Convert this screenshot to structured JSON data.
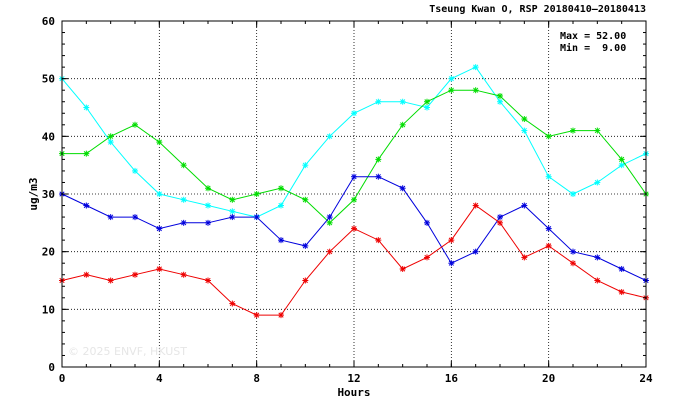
{
  "chart_data": {
    "type": "line",
    "title": "Tseung Kwan O, RSP 20180410–20180413",
    "xlabel": "Hours",
    "ylabel": "ug/m3",
    "xlim": [
      0,
      24
    ],
    "ylim": [
      0,
      60
    ],
    "xticks": [
      "0",
      "4",
      "8",
      "12",
      "16",
      "20",
      "24"
    ],
    "yticks": [
      "0",
      "10",
      "20",
      "30",
      "40",
      "50",
      "60"
    ],
    "grid": true,
    "grid_style": "dotted",
    "stats": {
      "max": "Max = 52.00",
      "min": "Min =  9.00"
    },
    "watermark": "© 2025  ENVF, HKUST",
    "x": [
      0,
      1,
      2,
      3,
      4,
      5,
      6,
      7,
      8,
      9,
      10,
      11,
      12,
      13,
      14,
      15,
      16,
      17,
      18,
      19,
      20,
      21,
      22,
      23,
      24
    ],
    "series": [
      {
        "color": "#00ffff",
        "values": [
          50,
          45,
          39,
          34,
          30,
          29,
          28,
          27,
          26,
          28,
          35,
          40,
          44,
          46,
          46,
          45,
          50,
          52,
          46,
          41,
          33,
          30,
          32,
          35,
          37
        ]
      },
      {
        "color": "#00dd00",
        "values": [
          37,
          37,
          40,
          42,
          39,
          35,
          31,
          29,
          30,
          31,
          29,
          25,
          29,
          36,
          42,
          46,
          48,
          48,
          47,
          43,
          40,
          41,
          41,
          36,
          30
        ]
      },
      {
        "color": "#0000dd",
        "values": [
          30,
          28,
          26,
          26,
          24,
          25,
          25,
          26,
          26,
          22,
          21,
          26,
          33,
          33,
          31,
          25,
          18,
          20,
          26,
          28,
          24,
          20,
          19,
          17,
          15
        ]
      },
      {
        "color": "#ee0000",
        "values": [
          15,
          16,
          15,
          16,
          17,
          16,
          15,
          11,
          9,
          9,
          15,
          20,
          24,
          22,
          17,
          19,
          22,
          28,
          25,
          19,
          21,
          18,
          15,
          13,
          12
        ]
      }
    ]
  }
}
